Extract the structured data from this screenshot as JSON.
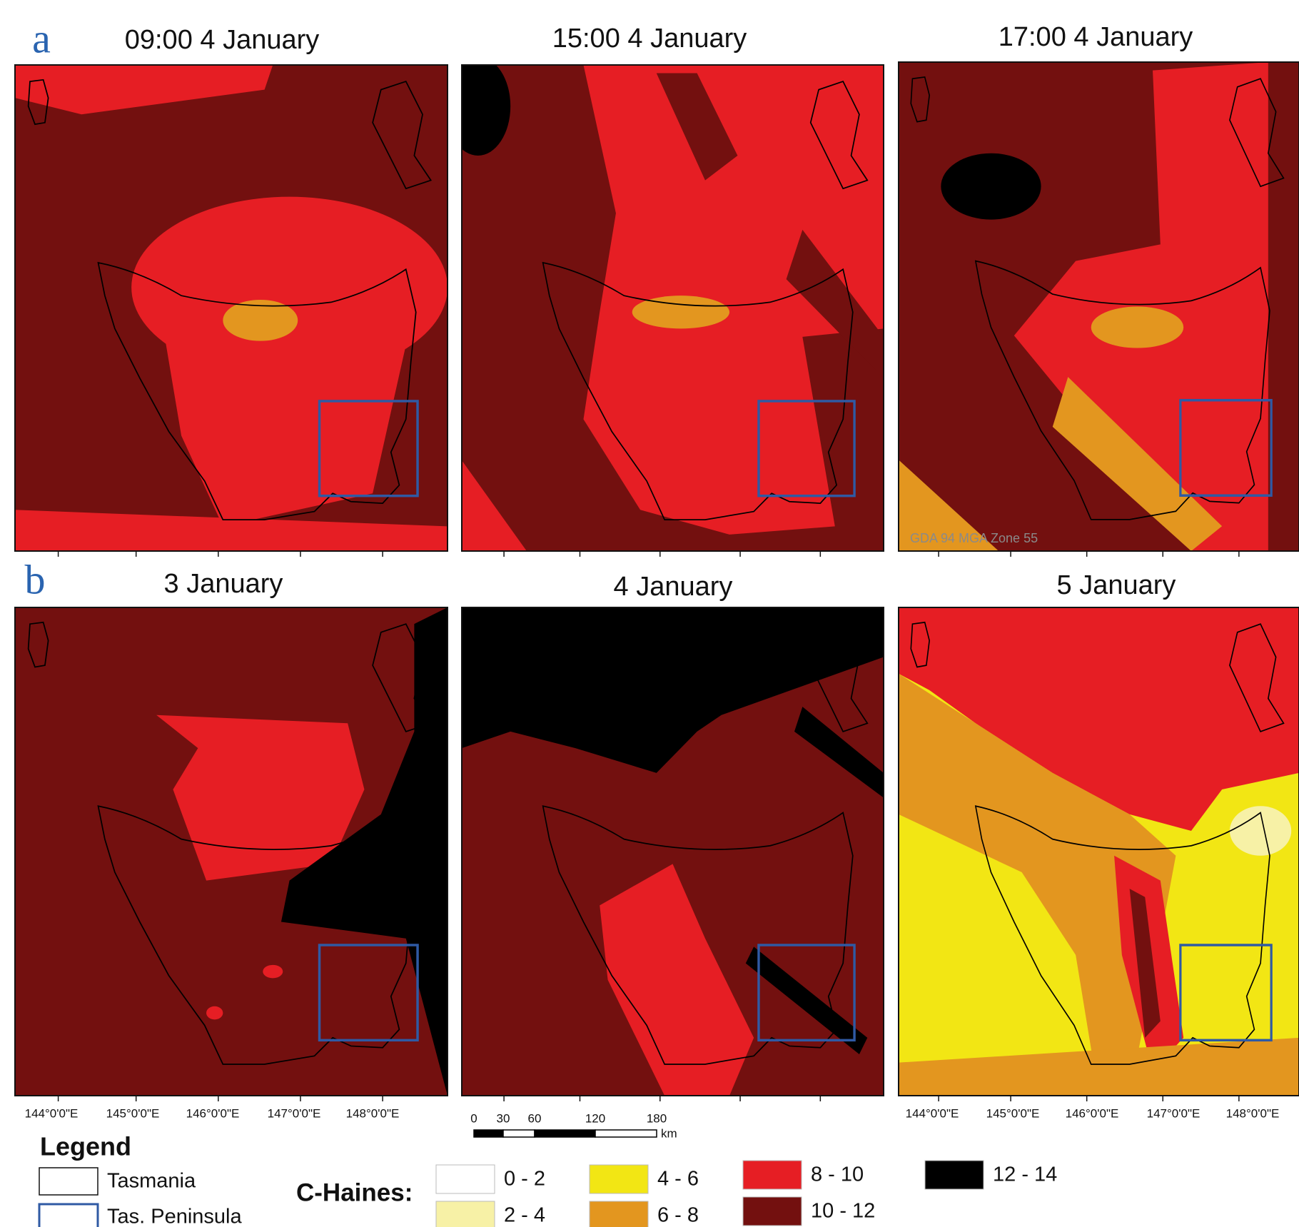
{
  "panel_labels": [
    "a",
    "b"
  ],
  "panels": [
    {
      "title": "09:00 4 January"
    },
    {
      "title": "15:00 4 January"
    },
    {
      "title": "17:00 4 January"
    },
    {
      "title": "3 January"
    },
    {
      "title": "4 January"
    },
    {
      "title": "5 January"
    }
  ],
  "longitude_labels": [
    "144°0'0\"E",
    "145°0'0\"E",
    "146°0'0\"E",
    "147°0'0\"E",
    "148°0'0\"E"
  ],
  "projection_note": "GDA 94 MGA Zone 55",
  "scale_bar": {
    "ticks": [
      "0",
      "30",
      "60",
      "120",
      "180"
    ],
    "unit": "km"
  },
  "legend": {
    "title": "Legend",
    "items": [
      "Tasmania",
      "Tas. Peninsula"
    ]
  },
  "c_haines": {
    "label": "C-Haines:",
    "classes": [
      {
        "label": "0 - 2",
        "color": "#ffffff"
      },
      {
        "label": "2 - 4",
        "color": "#f7f1a6"
      },
      {
        "label": "4 - 6",
        "color": "#f2e614"
      },
      {
        "label": "6 - 8",
        "color": "#e3961f"
      },
      {
        "label": "8 - 10",
        "color": "#e61e24"
      },
      {
        "label": "10 - 12",
        "color": "#73100f"
      },
      {
        "label": "12 - 14",
        "color": "#000000"
      }
    ]
  }
}
